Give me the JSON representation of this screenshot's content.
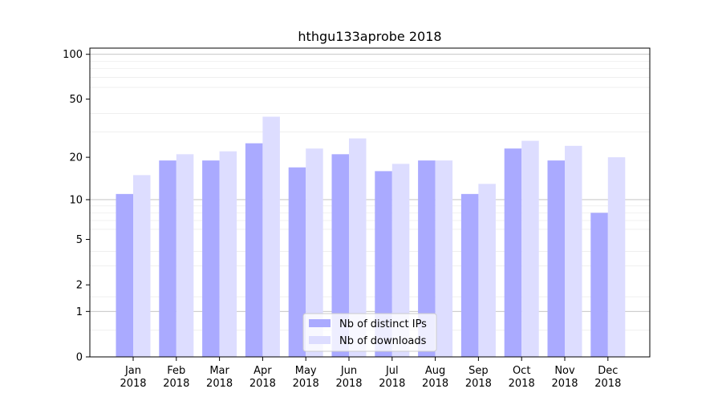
{
  "chart_data": {
    "type": "bar",
    "title": "hthgu133aprobe 2018",
    "xlabel": "",
    "ylabel": "",
    "yscale": "symlog",
    "ylim": [
      0,
      110
    ],
    "yticks": [
      0,
      1,
      2,
      5,
      10,
      20,
      50,
      100
    ],
    "ytick_labels": [
      "0",
      "1",
      "2",
      "5",
      "10",
      "20",
      "50",
      "100"
    ],
    "grid": "horizontal",
    "categories": [
      {
        "month": "Jan",
        "year": "2018"
      },
      {
        "month": "Feb",
        "year": "2018"
      },
      {
        "month": "Mar",
        "year": "2018"
      },
      {
        "month": "Apr",
        "year": "2018"
      },
      {
        "month": "May",
        "year": "2018"
      },
      {
        "month": "Jun",
        "year": "2018"
      },
      {
        "month": "Jul",
        "year": "2018"
      },
      {
        "month": "Aug",
        "year": "2018"
      },
      {
        "month": "Sep",
        "year": "2018"
      },
      {
        "month": "Oct",
        "year": "2018"
      },
      {
        "month": "Nov",
        "year": "2018"
      },
      {
        "month": "Dec",
        "year": "2018"
      }
    ],
    "series": [
      {
        "name": "Nb of distinct IPs",
        "color": "#aaaaff",
        "values": [
          11,
          19,
          19,
          25,
          17,
          21,
          16,
          19,
          11,
          23,
          19,
          8
        ]
      },
      {
        "name": "Nb of downloads",
        "color": "#ddddff",
        "values": [
          15,
          21,
          22,
          38,
          23,
          27,
          18,
          19,
          13,
          26,
          24,
          20
        ]
      }
    ],
    "legend": {
      "position": "lower-center"
    }
  }
}
